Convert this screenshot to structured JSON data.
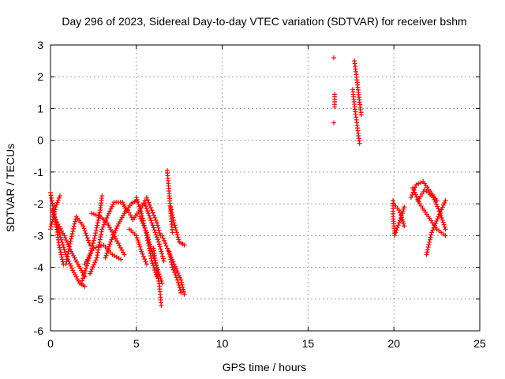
{
  "chart_data": {
    "type": "scatter",
    "title": "Day 296 of 2023, Sidereal Day-to-day VTEC variation (SDTVAR) for receiver bshm",
    "xlabel": "GPS time / hours",
    "ylabel": "SDTVAR / TECUs",
    "xlim": [
      0,
      25
    ],
    "ylim": [
      -6,
      3
    ],
    "xticks": [
      0,
      5,
      10,
      15,
      20,
      25
    ],
    "yticks": [
      -6,
      -5,
      -4,
      -3,
      -2,
      -1,
      0,
      1,
      2,
      3
    ],
    "xtick_labels": [
      "0",
      "5",
      "10",
      "15",
      "20",
      "25"
    ],
    "ytick_labels": [
      "-6",
      "-5",
      "-4",
      "-3",
      "-2",
      "-1",
      "0",
      "1",
      "2",
      "3"
    ],
    "grid": true,
    "marker": "+",
    "marker_color": "#ff0000",
    "series": [
      {
        "name": "SDTVAR",
        "segments": [
          [
            [
              0.0,
              -1.65
            ],
            [
              0.25,
              -2.4
            ],
            [
              0.5,
              -3.3
            ],
            [
              0.75,
              -3.9
            ]
          ],
          [
            [
              0.0,
              -2.8
            ],
            [
              0.3,
              -2.1
            ],
            [
              0.55,
              -1.75
            ]
          ],
          [
            [
              0.1,
              -2.2
            ],
            [
              0.5,
              -2.9
            ],
            [
              0.9,
              -3.6
            ],
            [
              1.3,
              -4.1
            ],
            [
              1.7,
              -4.5
            ],
            [
              2.0,
              -4.6
            ]
          ],
          [
            [
              0.3,
              -2.5
            ],
            [
              0.8,
              -3.0
            ],
            [
              1.2,
              -3.5
            ],
            [
              1.6,
              -3.9
            ],
            [
              2.0,
              -4.3
            ]
          ],
          [
            [
              0.9,
              -3.9
            ],
            [
              1.2,
              -3.1
            ],
            [
              1.5,
              -2.4
            ],
            [
              1.9,
              -2.7
            ],
            [
              2.3,
              -3.3
            ]
          ],
          [
            [
              1.8,
              -4.5
            ],
            [
              2.2,
              -3.8
            ],
            [
              2.6,
              -3.0
            ],
            [
              2.9,
              -2.2
            ],
            [
              3.0,
              -1.75
            ]
          ],
          [
            [
              2.0,
              -3.9
            ],
            [
              2.5,
              -3.4
            ],
            [
              3.1,
              -3.3
            ],
            [
              3.6,
              -3.6
            ],
            [
              4.1,
              -3.75
            ]
          ],
          [
            [
              2.3,
              -4.2
            ],
            [
              2.7,
              -3.7
            ],
            [
              3.0,
              -2.8
            ],
            [
              3.4,
              -2.3
            ],
            [
              3.7,
              -1.95
            ],
            [
              4.2,
              -1.95
            ],
            [
              4.4,
              -2.2
            ]
          ],
          [
            [
              2.4,
              -2.3
            ],
            [
              2.9,
              -2.4
            ],
            [
              3.3,
              -2.6
            ],
            [
              3.8,
              -3.1
            ],
            [
              4.3,
              -3.6
            ]
          ],
          [
            [
              3.2,
              -3.7
            ],
            [
              3.5,
              -3.2
            ],
            [
              3.9,
              -2.7
            ],
            [
              4.3,
              -2.3
            ],
            [
              4.7,
              -2.0
            ],
            [
              5.0,
              -1.9
            ]
          ],
          [
            [
              4.5,
              -2.2
            ],
            [
              4.8,
              -2.5
            ],
            [
              5.2,
              -2.2
            ],
            [
              5.5,
              -1.9
            ]
          ],
          [
            [
              4.6,
              -2.8
            ],
            [
              5.0,
              -3.0
            ],
            [
              5.3,
              -3.5
            ],
            [
              5.6,
              -3.9
            ]
          ],
          [
            [
              5.0,
              -1.8
            ],
            [
              5.3,
              -2.3
            ],
            [
              5.6,
              -3.0
            ],
            [
              5.9,
              -3.8
            ],
            [
              6.2,
              -4.3
            ]
          ],
          [
            [
              5.2,
              -2.4
            ],
            [
              5.6,
              -2.9
            ],
            [
              5.9,
              -3.5
            ],
            [
              6.2,
              -4.0
            ],
            [
              6.5,
              -4.5
            ]
          ],
          [
            [
              5.6,
              -1.8
            ],
            [
              5.9,
              -2.2
            ],
            [
              6.2,
              -2.6
            ],
            [
              6.4,
              -3.0
            ]
          ],
          [
            [
              5.5,
              -2.0
            ],
            [
              5.9,
              -2.6
            ],
            [
              6.3,
              -3.2
            ],
            [
              6.6,
              -3.8
            ]
          ],
          [
            [
              6.0,
              -3.4
            ],
            [
              6.2,
              -4.1
            ],
            [
              6.35,
              -4.6
            ],
            [
              6.45,
              -5.2
            ]
          ],
          [
            [
              6.5,
              -3.0
            ],
            [
              6.8,
              -3.4
            ],
            [
              7.2,
              -3.9
            ],
            [
              7.6,
              -4.4
            ],
            [
              7.8,
              -4.85
            ]
          ],
          [
            [
              6.8,
              -0.95
            ],
            [
              6.9,
              -1.6
            ],
            [
              7.0,
              -2.3
            ],
            [
              7.1,
              -2.9
            ]
          ],
          [
            [
              6.9,
              -3.5
            ],
            [
              7.1,
              -4.0
            ],
            [
              7.4,
              -4.4
            ],
            [
              7.6,
              -4.8
            ]
          ],
          [
            [
              7.0,
              -2.1
            ],
            [
              7.2,
              -2.6
            ],
            [
              7.5,
              -3.2
            ],
            [
              7.8,
              -3.3
            ]
          ],
          [
            [
              16.5,
              2.6
            ]
          ],
          [
            [
              16.55,
              1.45
            ],
            [
              16.55,
              1.05
            ]
          ],
          [
            [
              16.5,
              0.55
            ]
          ],
          [
            [
              17.7,
              2.5
            ],
            [
              17.85,
              1.9
            ],
            [
              18.0,
              1.2
            ],
            [
              18.1,
              0.8
            ]
          ],
          [
            [
              17.6,
              1.6
            ],
            [
              17.75,
              0.9
            ],
            [
              17.9,
              0.3
            ],
            [
              18.0,
              -0.1
            ]
          ],
          [
            [
              19.95,
              -1.9
            ],
            [
              19.95,
              -2.4
            ],
            [
              20.0,
              -2.7
            ],
            [
              20.05,
              -3.0
            ]
          ],
          [
            [
              20.0,
              -2.0
            ],
            [
              20.3,
              -2.2
            ],
            [
              20.5,
              -2.5
            ],
            [
              20.6,
              -2.7
            ]
          ],
          [
            [
              20.1,
              -2.9
            ],
            [
              20.3,
              -2.6
            ],
            [
              20.5,
              -2.3
            ],
            [
              20.6,
              -2.1
            ]
          ],
          [
            [
              21.1,
              -1.5
            ],
            [
              21.5,
              -2.0
            ],
            [
              22.0,
              -2.4
            ],
            [
              22.5,
              -2.8
            ],
            [
              23.0,
              -3.0
            ]
          ],
          [
            [
              21.0,
              -1.8
            ],
            [
              21.3,
              -1.4
            ],
            [
              21.7,
              -1.3
            ],
            [
              22.1,
              -1.6
            ],
            [
              22.5,
              -1.9
            ]
          ],
          [
            [
              21.9,
              -3.6
            ],
            [
              22.2,
              -2.9
            ],
            [
              22.6,
              -2.4
            ],
            [
              23.0,
              -1.9
            ]
          ],
          [
            [
              21.4,
              -1.9
            ],
            [
              21.8,
              -1.55
            ],
            [
              22.3,
              -1.8
            ],
            [
              22.7,
              -2.3
            ],
            [
              23.0,
              -2.8
            ]
          ]
        ]
      }
    ]
  }
}
